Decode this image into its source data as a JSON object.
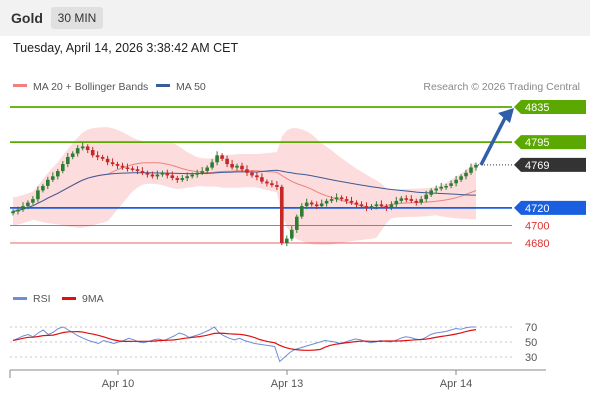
{
  "header": {
    "instrument": "Gold",
    "timeframe": "30 MIN",
    "timestamp": "Tuesday, April 14, 2026 3:38:42 AM CET"
  },
  "chart_data": [
    {
      "type": "candlestick",
      "title": "",
      "legend": [
        {
          "name": "MA 20 + Bollinger Bands",
          "color": "#f08080"
        },
        {
          "name": "MA 50",
          "color": "#3a5a99"
        }
      ],
      "legend_position": "top-left",
      "credit": "Research © 2026 Trading Central",
      "x_ticks": [
        "Apr 10",
        "Apr 13",
        "Apr 14"
      ],
      "current_price": "4769",
      "levels": [
        {
          "value": 4835,
          "label": "4835",
          "kind": "resistance",
          "color": "#5aa800"
        },
        {
          "value": 4795,
          "label": "4795",
          "kind": "resistance",
          "color": "#5aa800"
        },
        {
          "value": 4720,
          "label": "4720",
          "kind": "pivot",
          "color": "#1a5fe0"
        },
        {
          "value": 4700,
          "label": "4700",
          "kind": "support",
          "color": "#e03030"
        },
        {
          "value": 4680,
          "label": "4680",
          "kind": "support",
          "color": "#e03030"
        }
      ],
      "forecast_arrow": {
        "from": 4769,
        "to": 4835,
        "color": "#2f5fa8"
      },
      "grid": false,
      "closes": [
        4716,
        4718,
        4722,
        4726,
        4730,
        4740,
        4745,
        4752,
        4756,
        4762,
        4770,
        4778,
        4782,
        4788,
        4790,
        4786,
        4780,
        4778,
        4776,
        4772,
        4770,
        4768,
        4766,
        4765,
        4764,
        4762,
        4760,
        4758,
        4756,
        4758,
        4760,
        4757,
        4754,
        4752,
        4754,
        4756,
        4758,
        4760,
        4762,
        4766,
        4772,
        4780,
        4776,
        4770,
        4766,
        4768,
        4764,
        4760,
        4757,
        4755,
        4750,
        4748,
        4746,
        4744,
        4680,
        4685,
        4695,
        4710,
        4722,
        4726,
        4724,
        4722,
        4725,
        4728,
        4730,
        4732,
        4730,
        4728,
        4726,
        4724,
        4722,
        4720,
        4722,
        4724,
        4722,
        4720,
        4724,
        4728,
        4731,
        4730,
        4728,
        4726,
        4730,
        4735,
        4740,
        4742,
        4744,
        4745,
        4748,
        4752,
        4756,
        4760,
        4766,
        4769
      ]
    },
    {
      "type": "line",
      "legend": [
        {
          "name": "RSI",
          "color": "#6a8ed8"
        },
        {
          "name": "9MA",
          "color": "#e01010"
        }
      ],
      "legend_position": "top-left",
      "ylim": [
        18,
        82
      ],
      "y_ticks": [
        "70",
        "50",
        "30"
      ],
      "rsi": [
        52,
        55,
        58,
        60,
        57,
        62,
        66,
        60,
        63,
        68,
        70,
        66,
        62,
        58,
        55,
        52,
        50,
        48,
        52,
        50,
        48,
        50,
        52,
        55,
        53,
        50,
        49,
        51,
        53,
        54,
        52,
        55,
        58,
        62,
        60,
        56,
        58,
        60,
        63,
        66,
        70,
        62,
        58,
        55,
        53,
        55,
        52,
        50,
        48,
        47,
        46,
        45,
        44,
        24,
        30,
        36,
        40,
        42,
        44,
        46,
        48,
        50,
        52,
        51,
        50,
        48,
        50,
        52,
        54,
        53,
        51,
        49,
        50,
        52,
        51,
        50,
        52,
        55,
        57,
        56,
        54,
        53,
        56,
        60,
        62,
        63,
        64,
        66,
        68,
        67,
        69,
        70,
        70
      ]
    }
  ]
}
